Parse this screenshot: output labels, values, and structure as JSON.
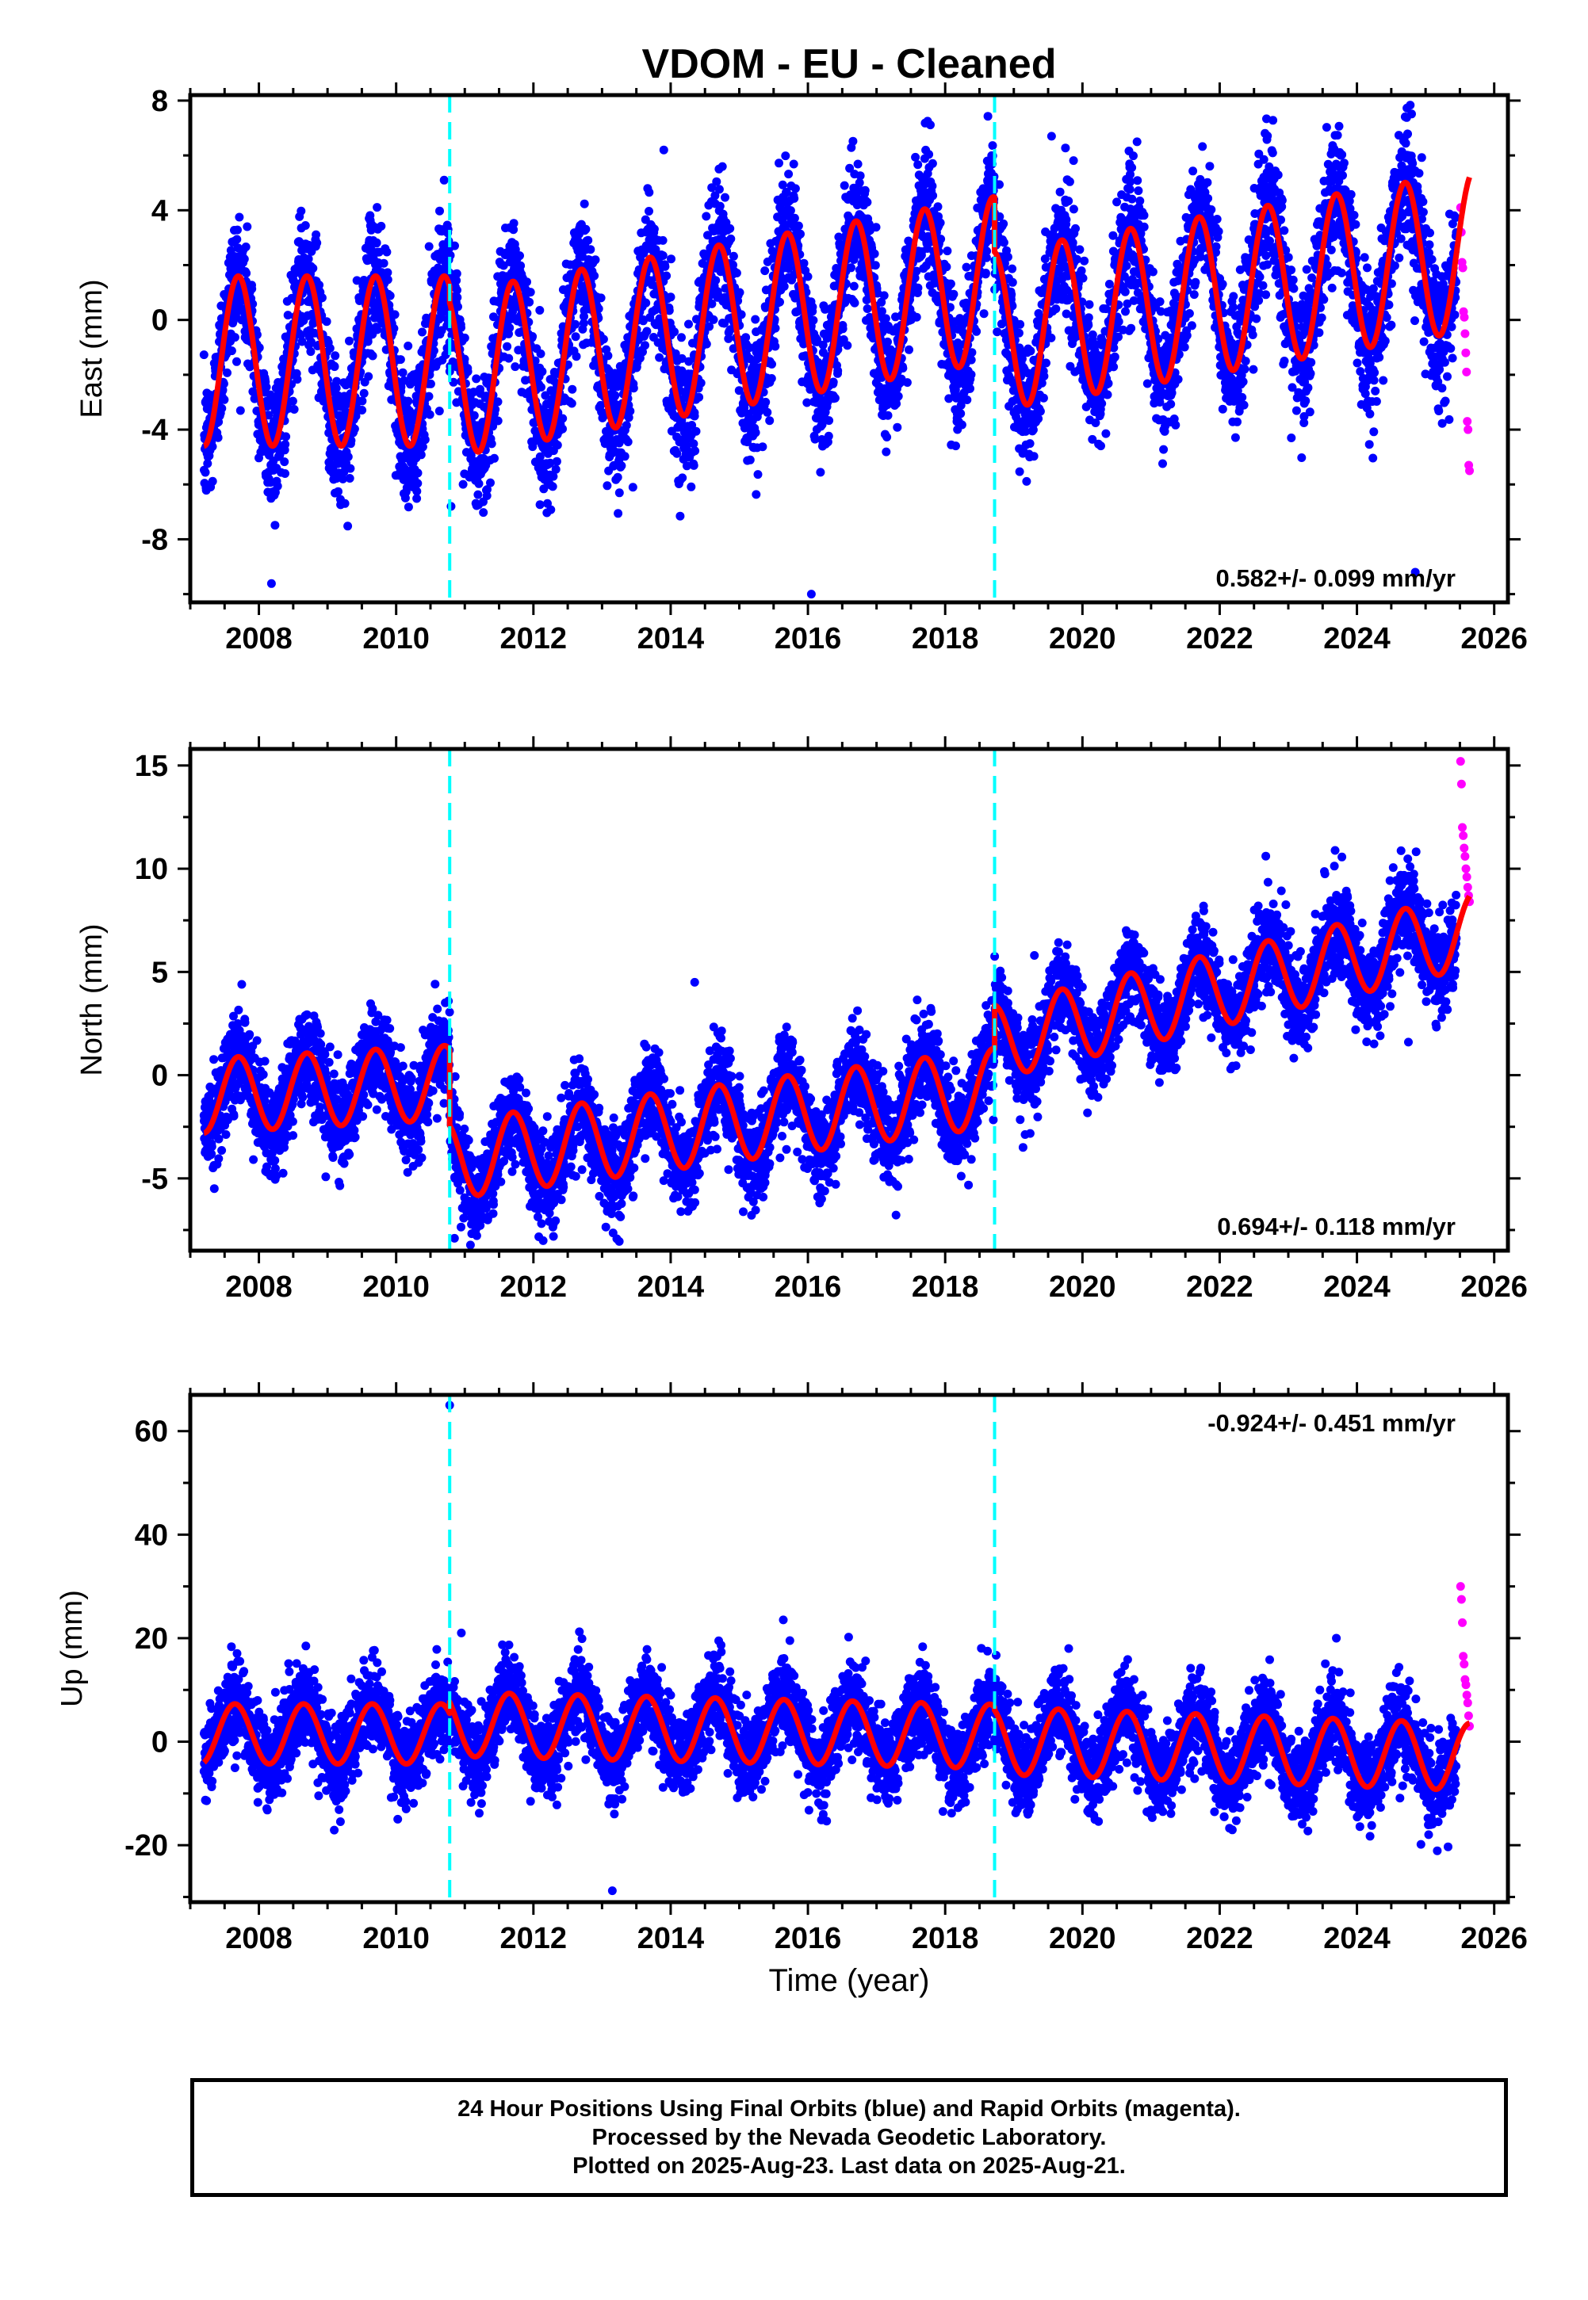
{
  "chart_data": {
    "type": "scatter",
    "title": "VDOM  - EU - Cleaned",
    "xlabel": "Time (year)",
    "xlim": [
      2007,
      2026.2
    ],
    "x_ticks": [
      2008,
      2010,
      2012,
      2014,
      2016,
      2018,
      2020,
      2022,
      2024,
      2026
    ],
    "x_tick_labels": [
      "2008",
      "2010",
      "2012",
      "2014",
      "2016",
      "2018",
      "2020",
      "2022",
      "2024",
      "2026"
    ],
    "x_minor_step": 0.5,
    "first_data_year": 2007.2,
    "last_final_year": 2025.45,
    "last_data_year": 2025.64,
    "legend_text": [
      "24 Hour Positions Using Final Orbits (blue) and Rapid Orbits (magenta).",
      "Processed by the Nevada Geodetic Laboratory.",
      "Plotted on 2025-Aug-23. Last data on 2025-Aug-21."
    ],
    "colors": {
      "final": "#0000ff",
      "rapid": "#ff00ff",
      "model": "#ff0000",
      "offset": "#00ffff",
      "frame": "#000000"
    },
    "offset_epochs": [
      2010.78,
      2018.72
    ],
    "panels": [
      {
        "name": "east",
        "ylabel": "East (mm)",
        "ylim": [
          -10.3,
          8.2
        ],
        "y_ticks": [
          8,
          4,
          0,
          -4,
          -8
        ],
        "y_tick_labels": [
          "8",
          "4",
          "0",
          "-4",
          "-8"
        ],
        "y_minor_step": 2,
        "rate_text": "0.582+/- 0.099 mm/yr",
        "rate_position": "bottom-right",
        "model_segments": [
          {
            "x0": 2007.2,
            "x1": 2010.78,
            "base0": -1.5,
            "slope": 0,
            "amp": 3.1,
            "phase": 2007.45
          },
          {
            "x0": 2010.78,
            "x1": 2018.72,
            "base0": -2.0,
            "slope": 0.44,
            "amp": 3.0,
            "phase": 2007.45
          },
          {
            "x0": 2018.72,
            "x1": 2025.64,
            "base0": -0.4,
            "slope": 0.42,
            "amp": 2.9,
            "phase": 2007.45
          }
        ],
        "noise": 1.2,
        "rapid_values": [
          4.1,
          3.2,
          2.1,
          1.9,
          0.3,
          0.1,
          -0.5,
          -1.2,
          -1.9,
          -3.7,
          -4.0,
          -5.3,
          -5.5
        ],
        "outliers": [
          {
            "x": 2016.05,
            "y": -10.0
          },
          {
            "x": 2010.8,
            "y": -6.8
          },
          {
            "x": 2013.9,
            "y": 6.2
          },
          {
            "x": 2013.45,
            "y": -6.1
          },
          {
            "x": 2024.85,
            "y": -9.2
          },
          {
            "x": 2019.55,
            "y": 6.7
          }
        ]
      },
      {
        "name": "north",
        "ylabel": "North (mm)",
        "ylim": [
          -8.5,
          15.8
        ],
        "y_ticks": [
          15,
          10,
          5,
          0,
          -5
        ],
        "y_tick_labels": [
          "15",
          "10",
          "5",
          "0",
          "-5"
        ],
        "y_minor_step": 2.5,
        "rate_text": "0.694+/- 0.118 mm/yr",
        "rate_position": "bottom-right",
        "model_segments": [
          {
            "x0": 2007.2,
            "x1": 2010.78,
            "base0": -1.0,
            "slope": 0.18,
            "amp": 1.8,
            "phase": 2007.45
          },
          {
            "x0": 2010.78,
            "x1": 2018.72,
            "base0": -4.1,
            "slope": 0.44,
            "amp": 1.9,
            "phase": 2007.45
          },
          {
            "x0": 2018.72,
            "x1": 2025.64,
            "base0": 1.6,
            "slope": 0.78,
            "amp": 1.8,
            "phase": 2007.45
          }
        ],
        "noise": 1.1,
        "rapid_values": [
          15.2,
          14.1,
          12.0,
          11.6,
          11.0,
          10.6,
          10.0,
          9.6,
          9.1,
          8.7,
          8.4
        ],
        "outliers": [
          {
            "x": 2010.85,
            "y": -7.9
          },
          {
            "x": 2014.35,
            "y": 4.5
          },
          {
            "x": 2024.75,
            "y": 1.6
          },
          {
            "x": 2007.75,
            "y": 4.4
          },
          {
            "x": 2016.2,
            "y": -6.0
          },
          {
            "x": 2019.3,
            "y": 5.8
          }
        ]
      },
      {
        "name": "up",
        "ylabel": "Up (mm)",
        "ylim": [
          -31,
          67
        ],
        "y_ticks": [
          60,
          40,
          20,
          0,
          -20
        ],
        "y_tick_labels": [
          "60",
          "40",
          "20",
          "0",
          "-20"
        ],
        "y_minor_step": 10,
        "rate_text": "-0.924+/- 0.451 mm/yr",
        "rate_position": "top-right",
        "model_segments": [
          {
            "x0": 2007.2,
            "x1": 2010.78,
            "base0": 1.5,
            "slope": 0,
            "amp": 5.8,
            "phase": 2007.4
          },
          {
            "x0": 2010.78,
            "x1": 2018.72,
            "base0": 3.4,
            "slope": -0.3,
            "amp": 6.2,
            "phase": 2007.4
          },
          {
            "x0": 2018.72,
            "x1": 2025.64,
            "base0": 0.2,
            "slope": -0.45,
            "amp": 6.5,
            "phase": 2007.4
          }
        ],
        "noise": 4.0,
        "rapid_values": [
          30.0,
          27.5,
          23.0,
          16.5,
          15.0,
          12.0,
          11.0,
          9.0,
          7.5,
          5.0,
          3.0
        ],
        "outliers": [
          {
            "x": 2010.78,
            "y": 65.0
          },
          {
            "x": 2013.15,
            "y": -28.8
          },
          {
            "x": 2010.95,
            "y": 21.0
          },
          {
            "x": 2014.7,
            "y": 19.5
          },
          {
            "x": 2019.8,
            "y": 18.0
          },
          {
            "x": 2023.7,
            "y": 20.0
          }
        ]
      }
    ]
  }
}
